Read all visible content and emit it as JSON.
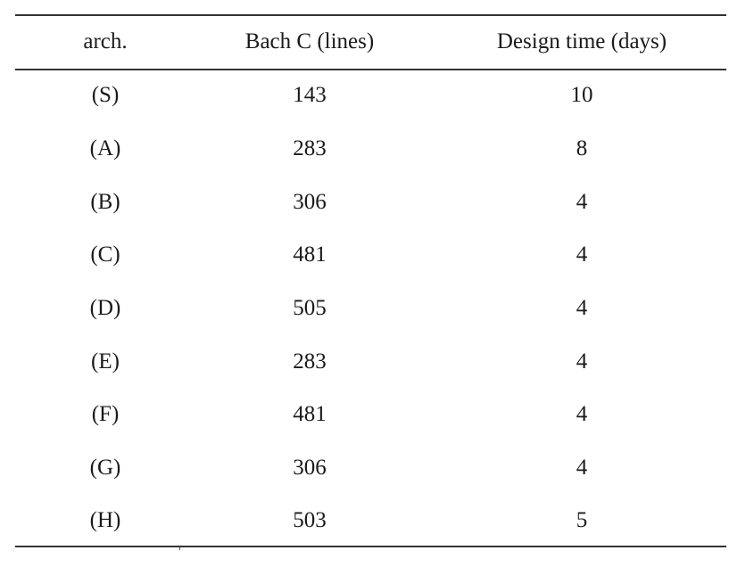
{
  "table": {
    "headers": [
      "arch.",
      "Bach C (lines)",
      "Design time (days)"
    ],
    "rows": [
      [
        "(S)",
        "143",
        "10"
      ],
      [
        "(A)",
        "283",
        "8"
      ],
      [
        "(B)",
        "306",
        "4"
      ],
      [
        "(C)",
        "481",
        "4"
      ],
      [
        "(D)",
        "505",
        "4"
      ],
      [
        "(E)",
        "283",
        "4"
      ],
      [
        "(F)",
        "481",
        "4"
      ],
      [
        "(G)",
        "306",
        "4"
      ],
      [
        "(H)",
        "503",
        "5"
      ]
    ]
  }
}
